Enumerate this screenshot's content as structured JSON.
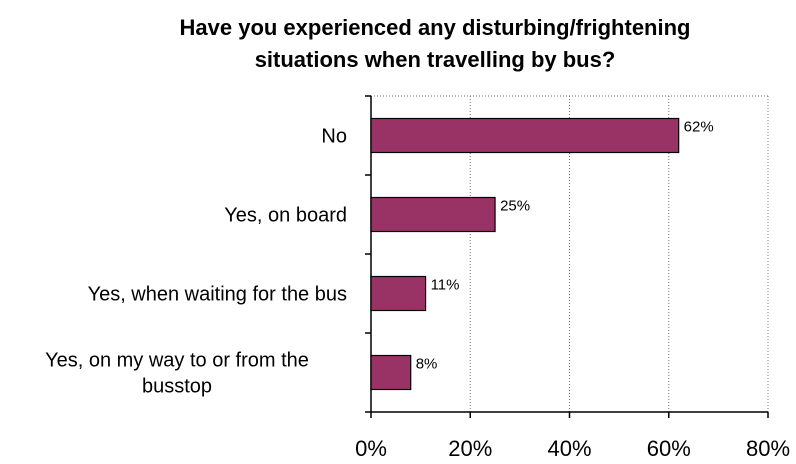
{
  "chart_data": {
    "type": "bar",
    "orientation": "horizontal",
    "title_lines": [
      "Have you experienced any disturbing/frightening",
      "situations when travelling by bus?"
    ],
    "categories": [
      [
        "No"
      ],
      [
        "Yes, on board"
      ],
      [
        "Yes, when waiting for the bus"
      ],
      [
        "Yes, on my way to or from the",
        "busstop"
      ]
    ],
    "values": [
      62,
      25,
      11,
      8
    ],
    "data_labels": [
      "62%",
      "25%",
      "11%",
      "8%"
    ],
    "xlim": [
      0,
      80
    ],
    "x_ticks": [
      0,
      20,
      40,
      60,
      80
    ],
    "x_tick_labels": [
      "0%",
      "20%",
      "40%",
      "60%",
      "80%"
    ],
    "grid": "vertical-dotted",
    "legend": "none",
    "bar_color": "#993366"
  }
}
